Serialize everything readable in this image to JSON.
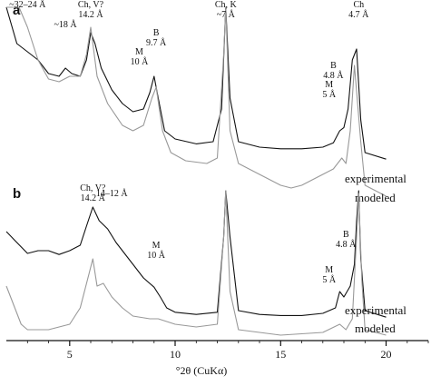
{
  "chart_data": [
    {
      "panel": "a",
      "type": "line",
      "xlabel": "°2θ (CuKα)",
      "xlim": [
        2,
        22
      ],
      "x_ticks": [
        5,
        10,
        15,
        20
      ],
      "series": [
        {
          "name": "experimental",
          "color": "#111111",
          "points": [
            [
              2.0,
              0.32
            ],
            [
              2.5,
              0.22
            ],
            [
              3.0,
              0.205
            ],
            [
              3.5,
              0.19
            ],
            [
              4.0,
              0.165
            ],
            [
              4.5,
              0.16
            ],
            [
              4.8,
              0.175
            ],
            [
              5.1,
              0.165
            ],
            [
              5.5,
              0.16
            ],
            [
              5.8,
              0.19
            ],
            [
              6.0,
              0.24
            ],
            [
              6.2,
              0.22
            ],
            [
              6.5,
              0.175
            ],
            [
              7.0,
              0.135
            ],
            [
              7.5,
              0.11
            ],
            [
              8.0,
              0.095
            ],
            [
              8.5,
              0.1
            ],
            [
              8.8,
              0.13
            ],
            [
              9.0,
              0.16
            ],
            [
              9.2,
              0.12
            ],
            [
              9.5,
              0.06
            ],
            [
              10.0,
              0.045
            ],
            [
              11.0,
              0.036
            ],
            [
              11.8,
              0.04
            ],
            [
              12.2,
              0.1
            ],
            [
              12.4,
              0.3
            ],
            [
              12.6,
              0.12
            ],
            [
              13.0,
              0.04
            ],
            [
              14.0,
              0.03
            ],
            [
              15.0,
              0.027
            ],
            [
              16.0,
              0.027
            ],
            [
              17.0,
              0.03
            ],
            [
              17.5,
              0.038
            ],
            [
              17.8,
              0.06
            ],
            [
              18.0,
              0.066
            ],
            [
              18.2,
              0.1
            ],
            [
              18.4,
              0.19
            ],
            [
              18.6,
              0.21
            ],
            [
              18.8,
              0.08
            ],
            [
              19.0,
              0.02
            ],
            [
              20.0,
              0.008
            ]
          ]
        },
        {
          "name": "modeled",
          "color": "#999999",
          "points": [
            [
              2.0,
              0.61
            ],
            [
              2.3,
              0.46
            ],
            [
              2.6,
              0.33
            ],
            [
              3.0,
              0.25
            ],
            [
              3.5,
              0.19
            ],
            [
              4.0,
              0.155
            ],
            [
              4.5,
              0.15
            ],
            [
              5.0,
              0.16
            ],
            [
              5.5,
              0.16
            ],
            [
              5.8,
              0.2
            ],
            [
              6.0,
              0.25
            ],
            [
              6.3,
              0.16
            ],
            [
              6.8,
              0.11
            ],
            [
              7.5,
              0.07
            ],
            [
              8.0,
              0.06
            ],
            [
              8.5,
              0.07
            ],
            [
              8.9,
              0.12
            ],
            [
              9.1,
              0.14
            ],
            [
              9.4,
              0.06
            ],
            [
              9.8,
              0.02
            ],
            [
              10.5,
              0.005
            ],
            [
              11.5,
              0.0
            ],
            [
              12.0,
              0.01
            ],
            [
              12.3,
              0.2
            ],
            [
              12.4,
              0.31
            ],
            [
              12.6,
              0.06
            ],
            [
              13.0,
              0.0
            ],
            [
              14.0,
              -0.02
            ],
            [
              15.0,
              -0.04
            ],
            [
              15.5,
              -0.045
            ],
            [
              16.0,
              -0.04
            ],
            [
              17.0,
              -0.02
            ],
            [
              17.5,
              -0.01
            ],
            [
              17.9,
              0.01
            ],
            [
              18.1,
              0.0
            ],
            [
              18.3,
              0.06
            ],
            [
              18.5,
              0.18
            ],
            [
              18.65,
              0.11
            ],
            [
              18.8,
              0.04
            ],
            [
              19.0,
              -0.04
            ],
            [
              20.0,
              -0.06
            ]
          ]
        }
      ],
      "annotations": [
        {
          "lines": [
            "~32–24 Å"
          ],
          "x": 3.0,
          "y": 0.29
        },
        {
          "lines": [
            "~18 Å"
          ],
          "x": 4.8,
          "y": 0.25
        },
        {
          "lines": [
            "Ch, V?",
            "14.2 Å"
          ],
          "x": 6.0,
          "y": 0.37
        },
        {
          "lines": [
            "B",
            "9.7 Å"
          ],
          "x": 9.1,
          "y": 0.235
        },
        {
          "lines": [
            "M",
            "10 Å"
          ],
          "x": 8.3,
          "y": 0.2
        },
        {
          "lines": [
            "Ch, K",
            "~7 Å"
          ],
          "x": 12.4,
          "y": 0.44
        },
        {
          "lines": [
            "Ch",
            "4.7 Å"
          ],
          "x": 18.7,
          "y": 0.33
        },
        {
          "lines": [
            "B",
            "4.8 Å"
          ],
          "x": 17.5,
          "y": 0.175
        },
        {
          "lines": [
            "M",
            "5 Å"
          ],
          "x": 17.3,
          "y": 0.14
        }
      ]
    },
    {
      "panel": "b",
      "type": "line",
      "xlabel": "°2θ (CuKα)",
      "xlim": [
        2,
        22
      ],
      "x_ticks": [
        5,
        10,
        15,
        20
      ],
      "series": [
        {
          "name": "experimental",
          "color": "#111111",
          "points": [
            [
              2.0,
              0.16
            ],
            [
              2.5,
              0.14
            ],
            [
              3.0,
              0.12
            ],
            [
              3.5,
              0.125
            ],
            [
              4.0,
              0.125
            ],
            [
              4.5,
              0.118
            ],
            [
              5.0,
              0.125
            ],
            [
              5.5,
              0.135
            ],
            [
              5.8,
              0.17
            ],
            [
              6.1,
              0.205
            ],
            [
              6.4,
              0.18
            ],
            [
              6.8,
              0.165
            ],
            [
              7.2,
              0.14
            ],
            [
              7.6,
              0.12
            ],
            [
              8.0,
              0.1
            ],
            [
              8.5,
              0.075
            ],
            [
              9.0,
              0.058
            ],
            [
              9.3,
              0.04
            ],
            [
              9.6,
              0.02
            ],
            [
              10.0,
              0.012
            ],
            [
              11.0,
              0.008
            ],
            [
              12.0,
              0.012
            ],
            [
              12.3,
              0.15
            ],
            [
              12.4,
              0.33
            ],
            [
              12.6,
              0.15
            ],
            [
              13.0,
              0.015
            ],
            [
              14.0,
              0.008
            ],
            [
              15.0,
              0.006
            ],
            [
              16.0,
              0.006
            ],
            [
              17.0,
              0.01
            ],
            [
              17.6,
              0.02
            ],
            [
              17.8,
              0.05
            ],
            [
              18.0,
              0.04
            ],
            [
              18.3,
              0.06
            ],
            [
              18.5,
              0.1
            ],
            [
              18.6,
              0.18
            ],
            [
              18.7,
              0.25
            ],
            [
              18.8,
              0.11
            ],
            [
              19.0,
              0.015
            ],
            [
              20.0,
              0.003
            ]
          ]
        },
        {
          "name": "modeled",
          "color": "#999999",
          "points": [
            [
              2.0,
              0.06
            ],
            [
              2.3,
              0.03
            ],
            [
              2.7,
              -0.01
            ],
            [
              3.0,
              -0.02
            ],
            [
              3.5,
              -0.02
            ],
            [
              4.0,
              -0.02
            ],
            [
              5.0,
              -0.01
            ],
            [
              5.5,
              0.02
            ],
            [
              5.9,
              0.08
            ],
            [
              6.1,
              0.11
            ],
            [
              6.3,
              0.06
            ],
            [
              6.6,
              0.065
            ],
            [
              7.0,
              0.04
            ],
            [
              7.5,
              0.02
            ],
            [
              8.0,
              0.005
            ],
            [
              8.8,
              0.0
            ],
            [
              9.2,
              0.0
            ],
            [
              10.0,
              -0.01
            ],
            [
              11.0,
              -0.015
            ],
            [
              12.0,
              -0.01
            ],
            [
              12.3,
              0.15
            ],
            [
              12.4,
              0.31
            ],
            [
              12.6,
              0.05
            ],
            [
              13.0,
              -0.02
            ],
            [
              15.0,
              -0.03
            ],
            [
              17.0,
              -0.025
            ],
            [
              17.8,
              -0.01
            ],
            [
              18.1,
              -0.02
            ],
            [
              18.4,
              0.0
            ],
            [
              18.6,
              0.15
            ],
            [
              18.7,
              0.23
            ],
            [
              18.85,
              0.07
            ],
            [
              19.0,
              -0.02
            ],
            [
              20.0,
              -0.03
            ]
          ]
        }
      ],
      "annotations": [
        {
          "lines": [
            "Ch, V?",
            "14.2 Å"
          ],
          "x": 6.1,
          "y": 0.3
        },
        {
          "lines": [
            "14–12 Å"
          ],
          "x": 7.0,
          "y": 0.225
        },
        {
          "lines": [
            "M",
            "10 Å"
          ],
          "x": 9.1,
          "y": 0.13
        },
        {
          "lines": [
            "B",
            "4.8 Å"
          ],
          "x": 18.1,
          "y": 0.15
        },
        {
          "lines": [
            "M",
            "5 Å"
          ],
          "x": 17.3,
          "y": 0.085
        }
      ]
    }
  ],
  "panels": [
    {
      "label": "a",
      "legend": {
        "experimental": "experimental",
        "modeled": "modeled"
      }
    },
    {
      "label": "b",
      "legend": {
        "experimental": "experimental",
        "modeled": "modeled"
      }
    }
  ],
  "axis": {
    "title": "°2θ (CuKα)",
    "tick_labels": [
      "5",
      "10",
      "15",
      "20"
    ]
  }
}
